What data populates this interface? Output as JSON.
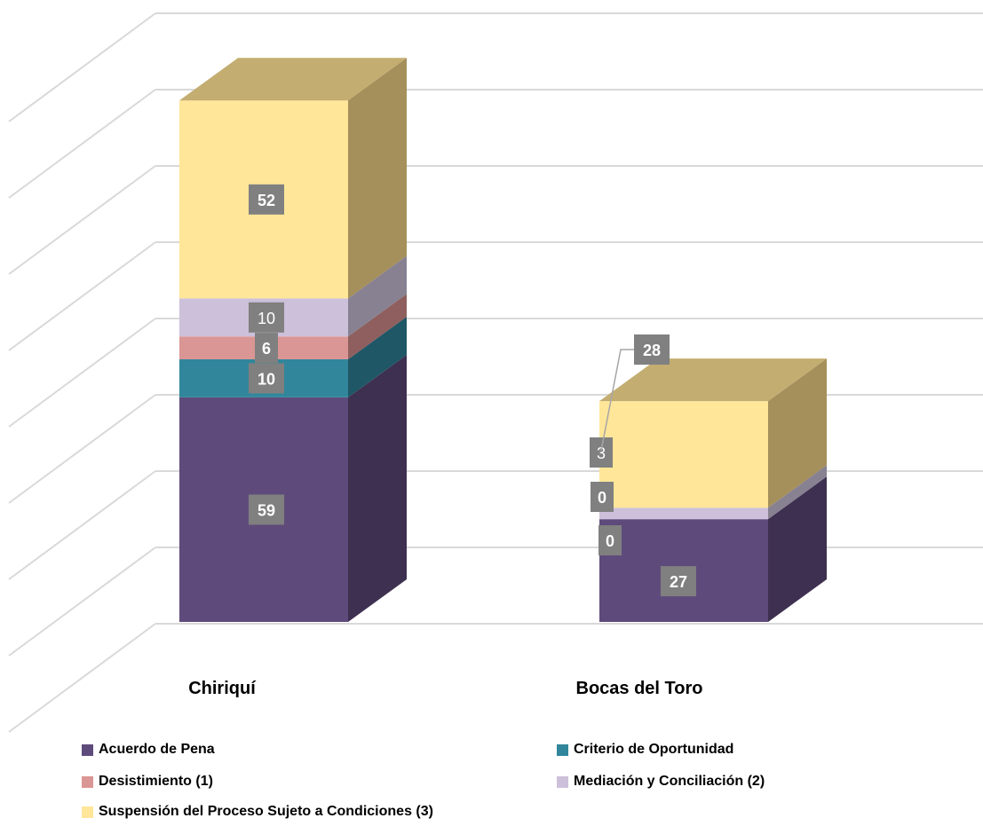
{
  "chart_data": {
    "type": "bar",
    "stacked": true,
    "three_d": true,
    "categories": [
      "Chiriquí",
      "Bocas del Toro"
    ],
    "series": [
      {
        "name": "Acuerdo de Pena",
        "values": [
          59,
          27
        ],
        "color": "#5f4b7b",
        "side": "#3e3050",
        "top": "#4f3f66",
        "label_bold": [
          true,
          true
        ]
      },
      {
        "name": "Criterio de Oportunidad",
        "values": [
          10,
          0
        ],
        "color": "#31869b",
        "side": "#1f5766",
        "top": "#286f80",
        "label_bold": [
          true,
          true
        ]
      },
      {
        "name": "Desistimiento (1)",
        "values": [
          6,
          0
        ],
        "color": "#da9694",
        "side": "#8e5f5e",
        "top": "#b47c7a",
        "label_bold": [
          true,
          true
        ]
      },
      {
        "name": "Mediación y Conciliación (2)",
        "values": [
          10,
          3
        ],
        "color": "#ccc0da",
        "side": "#878192",
        "top": "#a79eb5",
        "label_bold": [
          false,
          false
        ]
      },
      {
        "name": "Suspensión del Proceso Sujeto a Condiciones (3)",
        "values": [
          52,
          28
        ],
        "color": "#ffe699",
        "side": "#a58f5b",
        "top": "#c3ad70",
        "label_bold": [
          true,
          true
        ]
      }
    ],
    "grid": true,
    "legend_position": "bottom"
  }
}
